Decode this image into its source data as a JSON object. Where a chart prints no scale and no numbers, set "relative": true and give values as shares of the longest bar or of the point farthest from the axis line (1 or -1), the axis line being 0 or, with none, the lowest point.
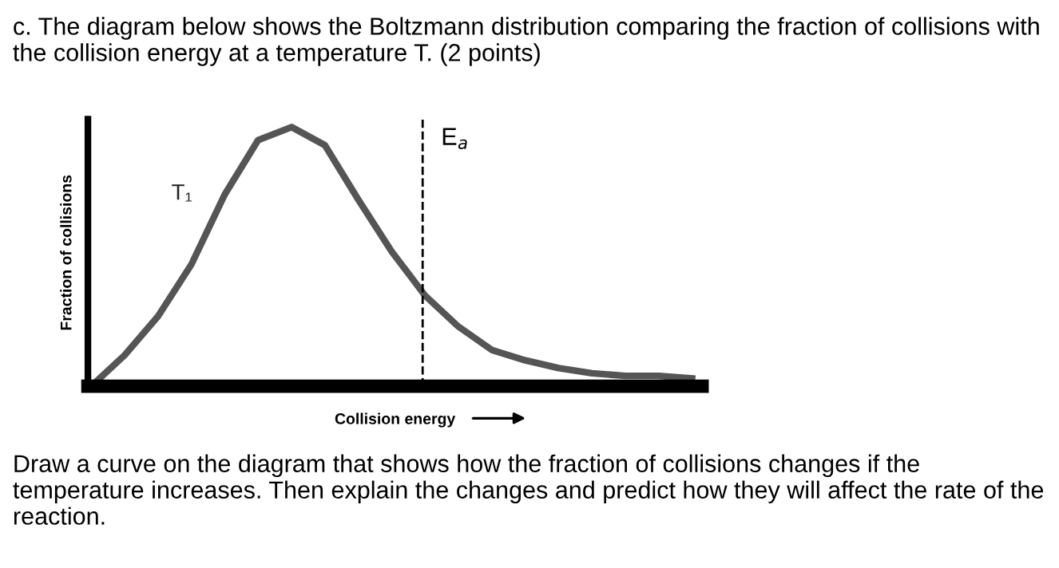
{
  "chart_data": {
    "type": "line",
    "relative": true,
    "title": "c. The diagram below shows the Boltzmann distribution comparing the fraction of collisions with the collision energy at a temperature T. (2 points)",
    "xlabel": "Collision energy",
    "ylabel": "Fraction of collisions",
    "categories": [
      null,
      null,
      null,
      null,
      null,
      null,
      null,
      null,
      null,
      null,
      null,
      null,
      null,
      null,
      null,
      null,
      null,
      null,
      null
    ],
    "series": [
      {
        "name": "T₁",
        "color": "#555555",
        "values": [
          0,
          0.12,
          0.27,
          0.47,
          0.74,
          0.95,
          1.0,
          0.93,
          0.72,
          0.52,
          0.35,
          0.23,
          0.14,
          0.1,
          0.07,
          0.05,
          0.04,
          0.04,
          0.03
        ]
      }
    ],
    "annotations": [
      "E$_{a}$",
      "Draw a curve on the diagram that shows how the fraction of collisions changes if the temperature increases. Then explain the changes and predict how they will affect the rate of the reaction."
    ],
    "grid": false,
    "legend": false,
    "marker": "none",
    "line_style": "solid"
  }
}
